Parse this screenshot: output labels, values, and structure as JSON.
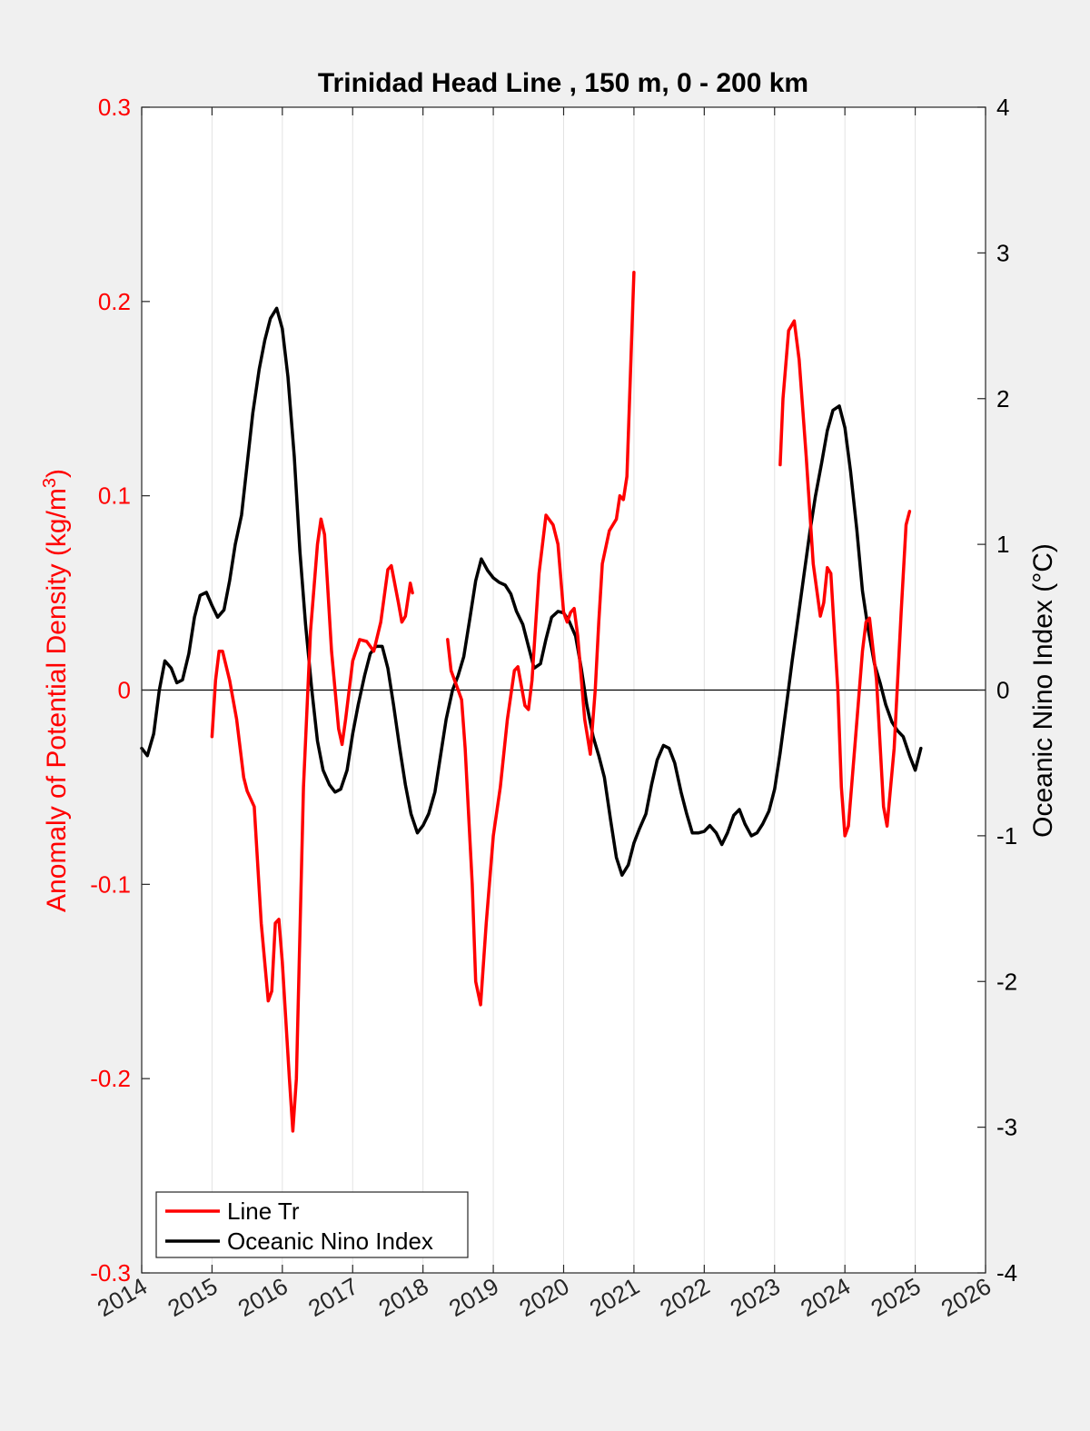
{
  "chart_data": {
    "type": "line",
    "title": "Trinidad Head Line , 150 m, 0 - 200 km",
    "ylabel_left": "Anomaly of Potential Density (kg/m",
    "ylabel_left_sup": "3",
    "ylabel_left_close": ")",
    "ylabel_right": "Oceanic Nino Index (°C)",
    "xlim": [
      2014,
      2026
    ],
    "ylim_left": [
      -0.3,
      0.3
    ],
    "ylim_right": [
      -4,
      4
    ],
    "x_ticks": [
      "2014",
      "2015",
      "2016",
      "2017",
      "2018",
      "2019",
      "2020",
      "2021",
      "2022",
      "2023",
      "2024",
      "2025",
      "2026"
    ],
    "y_ticks_left": [
      "-0.3",
      "-0.2",
      "-0.1",
      "0",
      "0.1",
      "0.2",
      "0.3"
    ],
    "y_ticks_right": [
      "-4",
      "-3",
      "-2",
      "-1",
      "0",
      "1",
      "2",
      "3",
      "4"
    ],
    "grid": "vertical",
    "legend_position": "bottom-left",
    "colors": {
      "line_tr": "#ff0000",
      "oni": "#000000",
      "plot_bg": "#ffffff",
      "figure_bg": "#f0f0f0"
    },
    "series": [
      {
        "name": "Line Tr",
        "axis": "left",
        "segments": [
          [
            [
              2015.0,
              -0.024
            ],
            [
              2015.05,
              0.005
            ],
            [
              2015.1,
              0.02
            ],
            [
              2015.15,
              0.02
            ],
            [
              2015.25,
              0.005
            ],
            [
              2015.35,
              -0.015
            ],
            [
              2015.45,
              -0.045
            ],
            [
              2015.5,
              -0.052
            ],
            [
              2015.6,
              -0.06
            ],
            [
              2015.7,
              -0.12
            ],
            [
              2015.8,
              -0.16
            ],
            [
              2015.85,
              -0.155
            ],
            [
              2015.9,
              -0.12
            ],
            [
              2015.95,
              -0.118
            ],
            [
              2016.0,
              -0.14
            ],
            [
              2016.1,
              -0.2
            ],
            [
              2016.15,
              -0.227
            ],
            [
              2016.2,
              -0.2
            ],
            [
              2016.3,
              -0.05
            ],
            [
              2016.4,
              0.03
            ],
            [
              2016.5,
              0.075
            ],
            [
              2016.55,
              0.088
            ],
            [
              2016.6,
              0.08
            ],
            [
              2016.7,
              0.02
            ],
            [
              2016.8,
              -0.02
            ],
            [
              2016.85,
              -0.028
            ],
            [
              2016.9,
              -0.015
            ],
            [
              2017.0,
              0.015
            ],
            [
              2017.1,
              0.026
            ],
            [
              2017.2,
              0.025
            ],
            [
              2017.3,
              0.02
            ],
            [
              2017.4,
              0.035
            ],
            [
              2017.5,
              0.062
            ],
            [
              2017.55,
              0.064
            ],
            [
              2017.65,
              0.045
            ],
            [
              2017.7,
              0.035
            ],
            [
              2017.75,
              0.038
            ],
            [
              2017.82,
              0.055
            ],
            [
              2017.85,
              0.05
            ]
          ],
          [
            [
              2018.35,
              0.026
            ],
            [
              2018.4,
              0.01
            ],
            [
              2018.5,
              0.0
            ],
            [
              2018.55,
              -0.005
            ],
            [
              2018.6,
              -0.03
            ],
            [
              2018.7,
              -0.1
            ],
            [
              2018.75,
              -0.15
            ],
            [
              2018.82,
              -0.162
            ],
            [
              2018.9,
              -0.12
            ],
            [
              2019.0,
              -0.075
            ],
            [
              2019.1,
              -0.05
            ],
            [
              2019.2,
              -0.015
            ],
            [
              2019.3,
              0.01
            ],
            [
              2019.35,
              0.012
            ],
            [
              2019.45,
              -0.008
            ],
            [
              2019.5,
              -0.01
            ],
            [
              2019.55,
              0.005
            ],
            [
              2019.65,
              0.06
            ],
            [
              2019.75,
              0.09
            ],
            [
              2019.85,
              0.085
            ],
            [
              2019.92,
              0.075
            ],
            [
              2020.0,
              0.04
            ],
            [
              2020.05,
              0.035
            ],
            [
              2020.1,
              0.04
            ],
            [
              2020.15,
              0.042
            ],
            [
              2020.2,
              0.028
            ],
            [
              2020.3,
              -0.015
            ],
            [
              2020.38,
              -0.033
            ],
            [
              2020.45,
              0.0
            ],
            [
              2020.5,
              0.035
            ],
            [
              2020.55,
              0.065
            ],
            [
              2020.65,
              0.082
            ],
            [
              2020.75,
              0.088
            ],
            [
              2020.8,
              0.1
            ],
            [
              2020.85,
              0.098
            ],
            [
              2020.9,
              0.11
            ],
            [
              2021.0,
              0.215
            ]
          ],
          [
            [
              2023.08,
              0.116
            ],
            [
              2023.12,
              0.15
            ],
            [
              2023.2,
              0.185
            ],
            [
              2023.28,
              0.19
            ],
            [
              2023.35,
              0.17
            ],
            [
              2023.45,
              0.12
            ],
            [
              2023.55,
              0.065
            ],
            [
              2023.65,
              0.038
            ],
            [
              2023.7,
              0.045
            ],
            [
              2023.75,
              0.063
            ],
            [
              2023.8,
              0.06
            ],
            [
              2023.9,
              0.0
            ],
            [
              2023.95,
              -0.05
            ],
            [
              2024.0,
              -0.075
            ],
            [
              2024.05,
              -0.07
            ],
            [
              2024.15,
              -0.025
            ],
            [
              2024.25,
              0.02
            ],
            [
              2024.3,
              0.035
            ],
            [
              2024.35,
              0.037
            ],
            [
              2024.45,
              0.005
            ],
            [
              2024.55,
              -0.06
            ],
            [
              2024.6,
              -0.07
            ],
            [
              2024.7,
              -0.03
            ],
            [
              2024.8,
              0.04
            ],
            [
              2024.87,
              0.085
            ],
            [
              2024.92,
              0.092
            ]
          ]
        ]
      },
      {
        "name": "Oceanic Nino Index",
        "axis": "right",
        "points": [
          [
            2014.0,
            -0.4
          ],
          [
            2014.08,
            -0.45
          ],
          [
            2014.17,
            -0.3
          ],
          [
            2014.25,
            0.0
          ],
          [
            2014.33,
            0.2
          ],
          [
            2014.42,
            0.15
          ],
          [
            2014.5,
            0.05
          ],
          [
            2014.58,
            0.07
          ],
          [
            2014.67,
            0.25
          ],
          [
            2014.75,
            0.5
          ],
          [
            2014.83,
            0.65
          ],
          [
            2014.92,
            0.67
          ],
          [
            2015.0,
            0.58
          ],
          [
            2015.08,
            0.5
          ],
          [
            2015.17,
            0.55
          ],
          [
            2015.25,
            0.75
          ],
          [
            2015.33,
            1.0
          ],
          [
            2015.42,
            1.2
          ],
          [
            2015.5,
            1.55
          ],
          [
            2015.58,
            1.9
          ],
          [
            2015.67,
            2.2
          ],
          [
            2015.75,
            2.4
          ],
          [
            2015.83,
            2.55
          ],
          [
            2015.92,
            2.62
          ],
          [
            2016.0,
            2.48
          ],
          [
            2016.08,
            2.15
          ],
          [
            2016.17,
            1.6
          ],
          [
            2016.25,
            0.95
          ],
          [
            2016.33,
            0.45
          ],
          [
            2016.42,
            0.0
          ],
          [
            2016.5,
            -0.35
          ],
          [
            2016.58,
            -0.55
          ],
          [
            2016.67,
            -0.65
          ],
          [
            2016.75,
            -0.7
          ],
          [
            2016.83,
            -0.68
          ],
          [
            2016.92,
            -0.55
          ],
          [
            2017.0,
            -0.3
          ],
          [
            2017.08,
            -0.1
          ],
          [
            2017.17,
            0.1
          ],
          [
            2017.25,
            0.25
          ],
          [
            2017.33,
            0.3
          ],
          [
            2017.42,
            0.3
          ],
          [
            2017.5,
            0.15
          ],
          [
            2017.58,
            -0.1
          ],
          [
            2017.67,
            -0.4
          ],
          [
            2017.75,
            -0.65
          ],
          [
            2017.83,
            -0.85
          ],
          [
            2017.92,
            -0.98
          ],
          [
            2018.0,
            -0.93
          ],
          [
            2018.08,
            -0.85
          ],
          [
            2018.17,
            -0.7
          ],
          [
            2018.25,
            -0.45
          ],
          [
            2018.33,
            -0.2
          ],
          [
            2018.42,
            0.0
          ],
          [
            2018.5,
            0.1
          ],
          [
            2018.58,
            0.23
          ],
          [
            2018.67,
            0.5
          ],
          [
            2018.75,
            0.75
          ],
          [
            2018.83,
            0.9
          ],
          [
            2018.92,
            0.82
          ],
          [
            2019.0,
            0.77
          ],
          [
            2019.08,
            0.74
          ],
          [
            2019.17,
            0.72
          ],
          [
            2019.25,
            0.66
          ],
          [
            2019.33,
            0.54
          ],
          [
            2019.42,
            0.45
          ],
          [
            2019.5,
            0.3
          ],
          [
            2019.58,
            0.15
          ],
          [
            2019.67,
            0.18
          ],
          [
            2019.75,
            0.35
          ],
          [
            2019.83,
            0.5
          ],
          [
            2019.92,
            0.54
          ],
          [
            2020.0,
            0.53
          ],
          [
            2020.08,
            0.47
          ],
          [
            2020.17,
            0.37
          ],
          [
            2020.25,
            0.15
          ],
          [
            2020.33,
            -0.1
          ],
          [
            2020.42,
            -0.32
          ],
          [
            2020.5,
            -0.45
          ],
          [
            2020.58,
            -0.6
          ],
          [
            2020.67,
            -0.9
          ],
          [
            2020.75,
            -1.15
          ],
          [
            2020.83,
            -1.27
          ],
          [
            2020.92,
            -1.2
          ],
          [
            2021.0,
            -1.05
          ],
          [
            2021.08,
            -0.95
          ],
          [
            2021.17,
            -0.85
          ],
          [
            2021.25,
            -0.65
          ],
          [
            2021.33,
            -0.48
          ],
          [
            2021.42,
            -0.38
          ],
          [
            2021.5,
            -0.4
          ],
          [
            2021.58,
            -0.5
          ],
          [
            2021.67,
            -0.7
          ],
          [
            2021.75,
            -0.85
          ],
          [
            2021.83,
            -0.98
          ],
          [
            2021.92,
            -0.98
          ],
          [
            2022.0,
            -0.97
          ],
          [
            2022.08,
            -0.93
          ],
          [
            2022.17,
            -0.98
          ],
          [
            2022.25,
            -1.06
          ],
          [
            2022.33,
            -0.98
          ],
          [
            2022.42,
            -0.86
          ],
          [
            2022.5,
            -0.82
          ],
          [
            2022.58,
            -0.92
          ],
          [
            2022.67,
            -1.0
          ],
          [
            2022.75,
            -0.98
          ],
          [
            2022.83,
            -0.92
          ],
          [
            2022.92,
            -0.83
          ],
          [
            2023.0,
            -0.68
          ],
          [
            2023.08,
            -0.43
          ],
          [
            2023.17,
            -0.1
          ],
          [
            2023.25,
            0.2
          ],
          [
            2023.33,
            0.48
          ],
          [
            2023.42,
            0.8
          ],
          [
            2023.5,
            1.08
          ],
          [
            2023.58,
            1.33
          ],
          [
            2023.67,
            1.56
          ],
          [
            2023.75,
            1.78
          ],
          [
            2023.83,
            1.92
          ],
          [
            2023.92,
            1.95
          ],
          [
            2024.0,
            1.8
          ],
          [
            2024.08,
            1.5
          ],
          [
            2024.17,
            1.1
          ],
          [
            2024.25,
            0.68
          ],
          [
            2024.33,
            0.42
          ],
          [
            2024.42,
            0.18
          ],
          [
            2024.5,
            0.05
          ],
          [
            2024.58,
            -0.1
          ],
          [
            2024.67,
            -0.22
          ],
          [
            2024.75,
            -0.28
          ],
          [
            2024.83,
            -0.32
          ],
          [
            2024.92,
            -0.45
          ],
          [
            2025.0,
            -0.55
          ],
          [
            2025.08,
            -0.4
          ]
        ]
      }
    ]
  }
}
